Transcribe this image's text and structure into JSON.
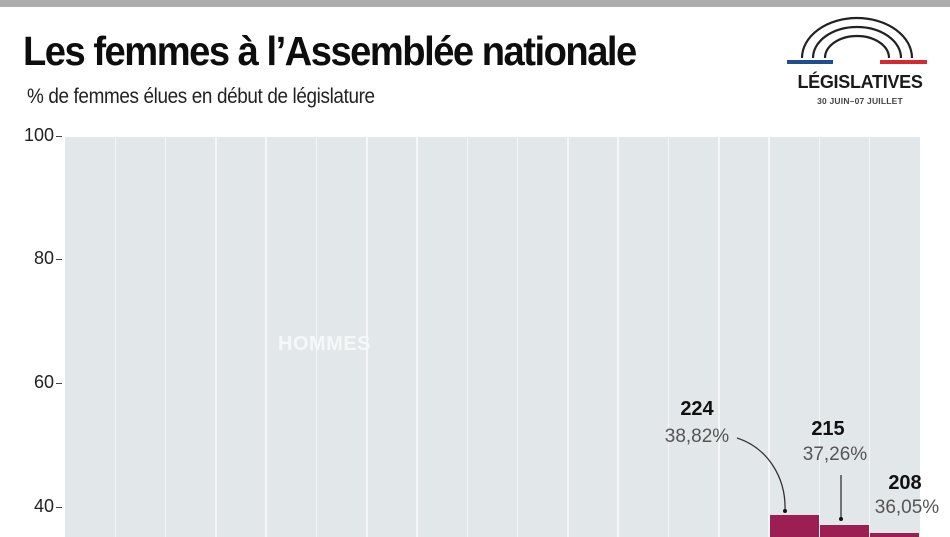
{
  "header": {
    "title": "Les femmes à l’Assemblée nationale",
    "subtitle": "% de femmes élues en début de législature"
  },
  "logo": {
    "name": "LÉGISLATIVES",
    "dates": "30 JUIN–07 JUILLET",
    "colors": {
      "blue": "#1f4e8c",
      "red": "#d8272f",
      "arcs": "#222222"
    }
  },
  "colors": {
    "topbar": "#adadad",
    "plot_background": "#e2e7ea",
    "women_bar": "#9b1f52",
    "men_label": "#f5f7f8"
  },
  "chart_data": {
    "type": "bar",
    "title": "Les femmes à l’Assemblée nationale",
    "subtitle": "% de femmes élues en début de législature",
    "xlabel": "",
    "ylabel": "",
    "ylim": [
      40,
      100
    ],
    "yticks": [
      100,
      80,
      60,
      40
    ],
    "grid": false,
    "stacked": true,
    "series_labels": {
      "upper": "HOMMES"
    },
    "num_columns": 17,
    "annotated_points": [
      {
        "column_index": 14,
        "count": "224",
        "percent": "38,82%",
        "value": 38.82
      },
      {
        "column_index": 15,
        "count": "215",
        "percent": "37,26%",
        "value": 37.26
      },
      {
        "column_index": 16,
        "count": "208",
        "percent": "36,05%",
        "value": 36.05
      }
    ],
    "note": "Chart cropped at 40%; lower part of bars for earlier legislatures not visible"
  }
}
